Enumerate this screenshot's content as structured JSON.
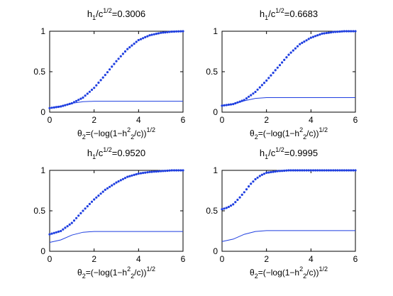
{
  "chart_data": [
    {
      "type": "line",
      "title": {
        "base": "h",
        "sub": "1",
        "mid": "/c",
        "sup": "1/2",
        "value": "=0.3006"
      },
      "xlabel": {
        "base": "θ",
        "sub": "2",
        "mid": "=(−log(1−h",
        "sup2": "2",
        "sub2": "2",
        "end": "/c))",
        "sup": "1/2"
      },
      "xlim": [
        0,
        6
      ],
      "ylim": [
        0,
        1
      ],
      "x_ticks": [
        "0",
        "2",
        "4",
        "6"
      ],
      "y_ticks": [
        "0",
        "0.5",
        "1"
      ],
      "series": [
        {
          "style": "dotted",
          "color": "#1f3fe0",
          "x": [
            0,
            0.5,
            1,
            1.5,
            2,
            2.5,
            3,
            3.5,
            4,
            4.5,
            5,
            5.5,
            6
          ],
          "y": [
            0.05,
            0.07,
            0.11,
            0.18,
            0.3,
            0.46,
            0.63,
            0.78,
            0.89,
            0.95,
            0.98,
            0.995,
            1.0
          ]
        },
        {
          "style": "solid",
          "color": "#1f3fe0",
          "x": [
            0,
            0.5,
            1,
            1.5,
            2,
            2.5,
            3,
            4,
            5,
            6
          ],
          "y": [
            0.05,
            0.075,
            0.11,
            0.13,
            0.135,
            0.135,
            0.135,
            0.135,
            0.135,
            0.135
          ]
        }
      ]
    },
    {
      "type": "line",
      "title": {
        "base": "h",
        "sub": "1",
        "mid": "/c",
        "sup": "1/2",
        "value": "=0.6683"
      },
      "xlabel": {
        "base": "θ",
        "sub": "2",
        "mid": "=(−log(1−h",
        "sup2": "2",
        "sub2": "2",
        "end": "/c))",
        "sup": "1/2"
      },
      "xlim": [
        0,
        6
      ],
      "ylim": [
        0,
        1
      ],
      "x_ticks": [
        "0",
        "2",
        "4",
        "6"
      ],
      "y_ticks": [
        "0",
        "0.5",
        "1"
      ],
      "series": [
        {
          "style": "dotted",
          "color": "#1f3fe0",
          "x": [
            0,
            0.5,
            1,
            1.5,
            2,
            2.5,
            3,
            3.5,
            4,
            4.5,
            5,
            5.5,
            6
          ],
          "y": [
            0.08,
            0.1,
            0.15,
            0.25,
            0.39,
            0.55,
            0.71,
            0.84,
            0.92,
            0.97,
            0.99,
            1.0,
            1.0
          ]
        },
        {
          "style": "solid",
          "color": "#1f3fe0",
          "x": [
            0,
            0.5,
            1,
            1.5,
            2,
            2.5,
            3,
            4,
            5,
            6
          ],
          "y": [
            0.08,
            0.1,
            0.14,
            0.17,
            0.18,
            0.18,
            0.18,
            0.18,
            0.18,
            0.18
          ]
        }
      ]
    },
    {
      "type": "line",
      "title": {
        "base": "h",
        "sub": "1",
        "mid": "/c",
        "sup": "1/2",
        "value": "=0.9520"
      },
      "xlabel": {
        "base": "θ",
        "sub": "2",
        "mid": "=(−log(1−h",
        "sup2": "2",
        "sub2": "2",
        "end": "/c))",
        "sup": "1/2"
      },
      "xlim": [
        0,
        6
      ],
      "ylim": [
        0,
        1
      ],
      "x_ticks": [
        "0",
        "2",
        "4",
        "6"
      ],
      "y_ticks": [
        "0",
        "0.5",
        "1"
      ],
      "series": [
        {
          "style": "dotted",
          "color": "#1f3fe0",
          "x": [
            0,
            0.5,
            1,
            1.5,
            2,
            2.5,
            3,
            3.5,
            4,
            4.5,
            5,
            5.5,
            6
          ],
          "y": [
            0.21,
            0.25,
            0.35,
            0.5,
            0.64,
            0.76,
            0.85,
            0.92,
            0.96,
            0.98,
            0.99,
            1.0,
            1.0
          ]
        },
        {
          "style": "solid",
          "color": "#1f3fe0",
          "x": [
            0,
            0.5,
            1,
            1.5,
            2,
            2.5,
            3,
            4,
            5,
            6
          ],
          "y": [
            0.11,
            0.14,
            0.2,
            0.235,
            0.245,
            0.245,
            0.245,
            0.245,
            0.245,
            0.245
          ]
        }
      ]
    },
    {
      "type": "line",
      "title": {
        "base": "h",
        "sub": "1",
        "mid": "/c",
        "sup": "1/2",
        "value": "=0.9995"
      },
      "xlabel": {
        "base": "θ",
        "sub": "2",
        "mid": "=(−log(1−h",
        "sup2": "2",
        "sub2": "2",
        "end": "/c))",
        "sup": "1/2"
      },
      "xlim": [
        0,
        6
      ],
      "ylim": [
        0,
        1
      ],
      "x_ticks": [
        "0",
        "2",
        "4",
        "6"
      ],
      "y_ticks": [
        "0",
        "0.5",
        "1"
      ],
      "series": [
        {
          "style": "dotted",
          "color": "#1f3fe0",
          "x": [
            0,
            0.25,
            0.5,
            0.75,
            1,
            1.25,
            1.5,
            1.75,
            2,
            2.5,
            3,
            3.5,
            4,
            5,
            6
          ],
          "y": [
            0.52,
            0.54,
            0.58,
            0.65,
            0.73,
            0.82,
            0.89,
            0.94,
            0.97,
            0.99,
            1.0,
            1.0,
            1.0,
            1.0,
            1.0
          ]
        },
        {
          "style": "solid",
          "color": "#1f3fe0",
          "x": [
            0,
            0.5,
            1,
            1.5,
            2,
            2.5,
            3,
            4,
            5,
            6
          ],
          "y": [
            0.12,
            0.15,
            0.21,
            0.245,
            0.255,
            0.255,
            0.255,
            0.255,
            0.255,
            0.255
          ]
        }
      ]
    }
  ]
}
